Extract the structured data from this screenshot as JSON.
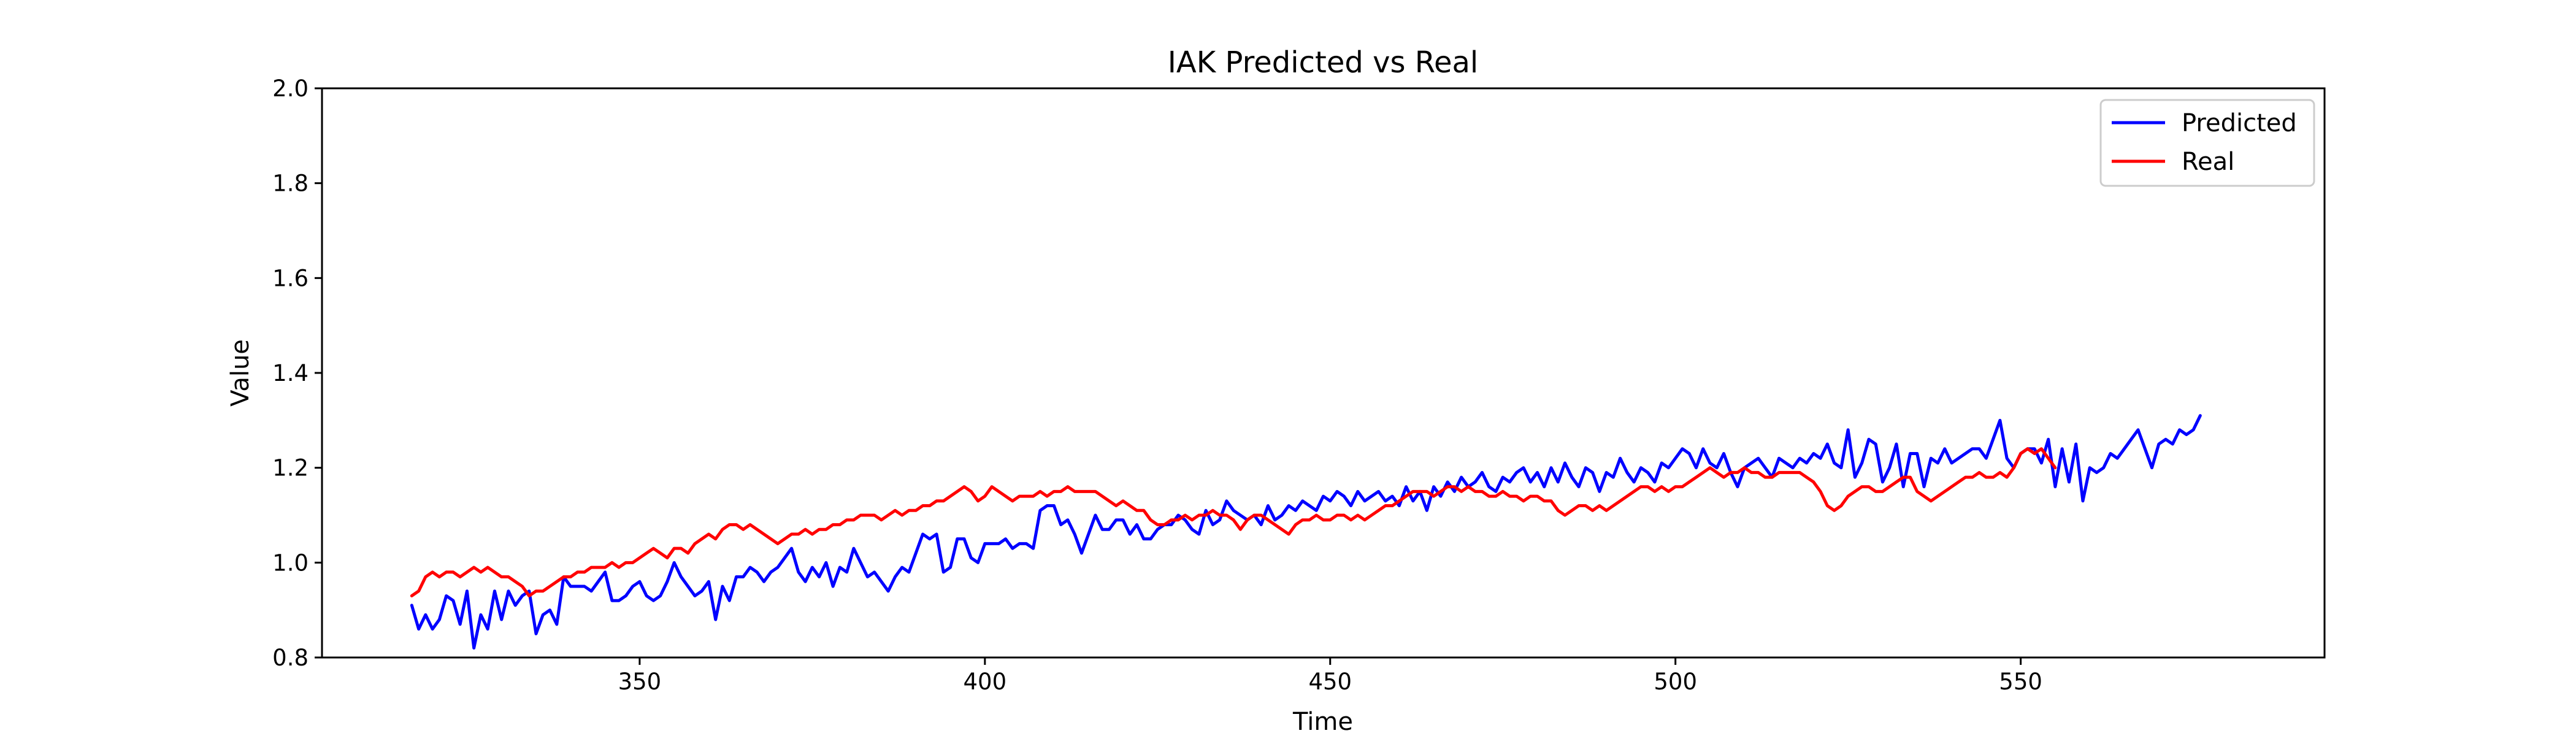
{
  "chart_data": {
    "type": "line",
    "title": "IAK Predicted vs Real",
    "xlabel": "Time",
    "ylabel": "Value",
    "xlim": [
      304,
      594
    ],
    "ylim": [
      0.8,
      2.0
    ],
    "xticks": [
      350,
      400,
      450,
      500,
      550
    ],
    "yticks": [
      0.8,
      1.0,
      1.2,
      1.4,
      1.6,
      1.8,
      2.0
    ],
    "ytick_labels": [
      "0.8",
      "1.0",
      "1.2",
      "1.4",
      "1.6",
      "1.8",
      "2.0"
    ],
    "grid": false,
    "legend_position": "top-right",
    "x_start": 317,
    "x_step": 1,
    "series": [
      {
        "name": "Predicted",
        "color": "#0000ff",
        "values": [
          0.91,
          0.86,
          0.89,
          0.86,
          0.88,
          0.93,
          0.92,
          0.87,
          0.94,
          0.82,
          0.89,
          0.86,
          0.94,
          0.88,
          0.94,
          0.91,
          0.93,
          0.94,
          0.85,
          0.89,
          0.9,
          0.87,
          0.97,
          0.95,
          0.95,
          0.95,
          0.94,
          0.96,
          0.98,
          0.92,
          0.92,
          0.93,
          0.95,
          0.96,
          0.93,
          0.92,
          0.93,
          0.96,
          1.0,
          0.97,
          0.95,
          0.93,
          0.94,
          0.96,
          0.88,
          0.95,
          0.92,
          0.97,
          0.97,
          0.99,
          0.98,
          0.96,
          0.98,
          0.99,
          1.01,
          1.03,
          0.98,
          0.96,
          0.99,
          0.97,
          1.0,
          0.95,
          0.99,
          0.98,
          1.03,
          1.0,
          0.97,
          0.98,
          0.96,
          0.94,
          0.97,
          0.99,
          0.98,
          1.02,
          1.06,
          1.05,
          1.06,
          0.98,
          0.99,
          1.05,
          1.05,
          1.01,
          1.0,
          1.04,
          1.04,
          1.04,
          1.05,
          1.03,
          1.04,
          1.04,
          1.03,
          1.11,
          1.12,
          1.12,
          1.08,
          1.09,
          1.06,
          1.02,
          1.06,
          1.1,
          1.07,
          1.07,
          1.09,
          1.09,
          1.06,
          1.08,
          1.05,
          1.05,
          1.07,
          1.08,
          1.08,
          1.1,
          1.09,
          1.07,
          1.06,
          1.11,
          1.08,
          1.09,
          1.13,
          1.11,
          1.1,
          1.09,
          1.1,
          1.08,
          1.12,
          1.09,
          1.1,
          1.12,
          1.11,
          1.13,
          1.12,
          1.11,
          1.14,
          1.13,
          1.15,
          1.14,
          1.12,
          1.15,
          1.13,
          1.14,
          1.15,
          1.13,
          1.14,
          1.12,
          1.16,
          1.13,
          1.15,
          1.11,
          1.16,
          1.14,
          1.17,
          1.15,
          1.18,
          1.16,
          1.17,
          1.19,
          1.16,
          1.15,
          1.18,
          1.17,
          1.19,
          1.2,
          1.17,
          1.19,
          1.16,
          1.2,
          1.17,
          1.21,
          1.18,
          1.16,
          1.2,
          1.19,
          1.15,
          1.19,
          1.18,
          1.22,
          1.19,
          1.17,
          1.2,
          1.19,
          1.17,
          1.21,
          1.2,
          1.22,
          1.24,
          1.23,
          1.2,
          1.24,
          1.21,
          1.2,
          1.23,
          1.19,
          1.16,
          1.2,
          1.21,
          1.22,
          1.2,
          1.18,
          1.22,
          1.21,
          1.2,
          1.22,
          1.21,
          1.23,
          1.22,
          1.25,
          1.21,
          1.2,
          1.28,
          1.18,
          1.21,
          1.26,
          1.25,
          1.17,
          1.2,
          1.25,
          1.16,
          1.23,
          1.23,
          1.16,
          1.22,
          1.21,
          1.24,
          1.21,
          1.22,
          1.23,
          1.24,
          1.24,
          1.22,
          1.26,
          1.3,
          1.22,
          1.2,
          1.23,
          1.24,
          1.24,
          1.21,
          1.26,
          1.16,
          1.24,
          1.17,
          1.25,
          1.13,
          1.2,
          1.19,
          1.2,
          1.23,
          1.22,
          1.24,
          1.26,
          1.28,
          1.24,
          1.2,
          1.25,
          1.26,
          1.25,
          1.28,
          1.27,
          1.28,
          1.31
        ]
      },
      {
        "name": "Real",
        "color": "#ff0000",
        "values": [
          0.93,
          0.94,
          0.97,
          0.98,
          0.97,
          0.98,
          0.98,
          0.97,
          0.98,
          0.99,
          0.98,
          0.99,
          0.98,
          0.97,
          0.97,
          0.96,
          0.95,
          0.93,
          0.94,
          0.94,
          0.95,
          0.96,
          0.97,
          0.97,
          0.98,
          0.98,
          0.99,
          0.99,
          0.99,
          1.0,
          0.99,
          1.0,
          1.0,
          1.01,
          1.02,
          1.03,
          1.02,
          1.01,
          1.03,
          1.03,
          1.02,
          1.04,
          1.05,
          1.06,
          1.05,
          1.07,
          1.08,
          1.08,
          1.07,
          1.08,
          1.07,
          1.06,
          1.05,
          1.04,
          1.05,
          1.06,
          1.06,
          1.07,
          1.06,
          1.07,
          1.07,
          1.08,
          1.08,
          1.09,
          1.09,
          1.1,
          1.1,
          1.1,
          1.09,
          1.1,
          1.11,
          1.1,
          1.11,
          1.11,
          1.12,
          1.12,
          1.13,
          1.13,
          1.14,
          1.15,
          1.16,
          1.15,
          1.13,
          1.14,
          1.16,
          1.15,
          1.14,
          1.13,
          1.14,
          1.14,
          1.14,
          1.15,
          1.14,
          1.15,
          1.15,
          1.16,
          1.15,
          1.15,
          1.15,
          1.15,
          1.14,
          1.13,
          1.12,
          1.13,
          1.12,
          1.11,
          1.11,
          1.09,
          1.08,
          1.08,
          1.09,
          1.09,
          1.1,
          1.09,
          1.1,
          1.1,
          1.11,
          1.1,
          1.1,
          1.09,
          1.07,
          1.09,
          1.1,
          1.1,
          1.09,
          1.08,
          1.07,
          1.06,
          1.08,
          1.09,
          1.09,
          1.1,
          1.09,
          1.09,
          1.1,
          1.1,
          1.09,
          1.1,
          1.09,
          1.1,
          1.11,
          1.12,
          1.12,
          1.13,
          1.14,
          1.15,
          1.15,
          1.15,
          1.14,
          1.15,
          1.16,
          1.16,
          1.15,
          1.16,
          1.15,
          1.15,
          1.14,
          1.14,
          1.15,
          1.14,
          1.14,
          1.13,
          1.14,
          1.14,
          1.13,
          1.13,
          1.11,
          1.1,
          1.11,
          1.12,
          1.12,
          1.11,
          1.12,
          1.11,
          1.12,
          1.13,
          1.14,
          1.15,
          1.16,
          1.16,
          1.15,
          1.16,
          1.15,
          1.16,
          1.16,
          1.17,
          1.18,
          1.19,
          1.2,
          1.19,
          1.18,
          1.19,
          1.19,
          1.2,
          1.19,
          1.19,
          1.18,
          1.18,
          1.19,
          1.19,
          1.19,
          1.19,
          1.18,
          1.17,
          1.15,
          1.12,
          1.11,
          1.12,
          1.14,
          1.15,
          1.16,
          1.16,
          1.15,
          1.15,
          1.16,
          1.17,
          1.18,
          1.18,
          1.15,
          1.14,
          1.13,
          1.14,
          1.15,
          1.16,
          1.17,
          1.18,
          1.18,
          1.19,
          1.18,
          1.18,
          1.19,
          1.18,
          1.2,
          1.23,
          1.24,
          1.23,
          1.24,
          1.22,
          1.2
        ]
      }
    ]
  }
}
